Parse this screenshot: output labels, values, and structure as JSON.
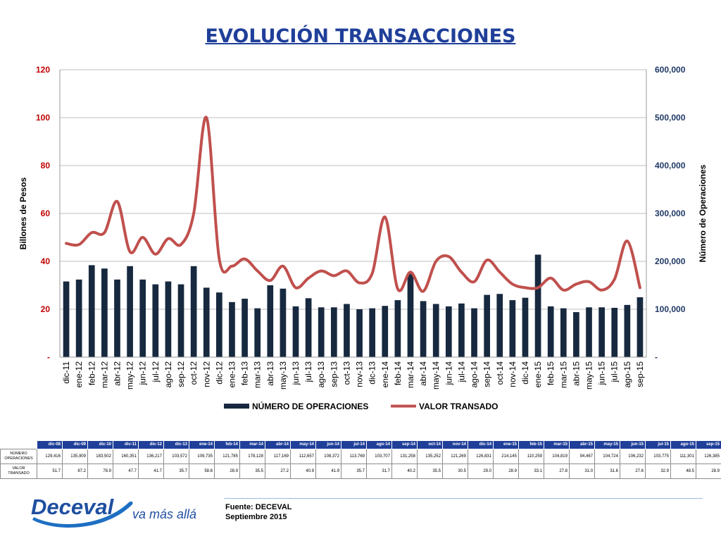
{
  "title": "EVOLUCIÓN TRANSACCIONES",
  "chart_data": {
    "type": "bar",
    "categories": [
      "dic-11",
      "ene-12",
      "feb-12",
      "mar-12",
      "abr-12",
      "may-12",
      "jun-12",
      "jul-12",
      "ago-12",
      "sep-12",
      "oct-12",
      "nov-12",
      "dic-12",
      "ene-13",
      "feb-13",
      "mar-13",
      "abr-13",
      "may-13",
      "jun-13",
      "jul-13",
      "ago-13",
      "sep-13",
      "oct-13",
      "nov-13",
      "dic-13",
      "ene-14",
      "feb-14",
      "mar-14",
      "abr-14",
      "may-14",
      "jun-14",
      "jul-14",
      "ago-14",
      "sep-14",
      "oct-14",
      "nov-14",
      "dic-14",
      "ene-15",
      "feb-15",
      "mar-15",
      "abr-15",
      "may-15",
      "jun-15",
      "jul-15",
      "ago-15",
      "sep-15"
    ],
    "series": [
      {
        "name": "NÚMERO DE OPERACIONES",
        "axis": "right",
        "kind": "bar",
        "color": "#17293f",
        "values": [
          158000,
          162000,
          192000,
          185000,
          162000,
          190000,
          162000,
          152000,
          158000,
          152000,
          190000,
          145000,
          135000,
          115000,
          122000,
          102000,
          150000,
          143000,
          106000,
          123000,
          104000,
          104000,
          111000,
          100000,
          102000,
          107000,
          119000,
          174000,
          117000,
          111000,
          106000,
          112000,
          102000,
          130000,
          132000,
          119000,
          124000,
          214000,
          106000,
          102000,
          94000,
          104000,
          104000,
          103000,
          109000,
          125000
        ]
      },
      {
        "name": "VALOR TRANSADO",
        "axis": "left",
        "kind": "line",
        "color": "#c0504d",
        "values": [
          47.5,
          47.0,
          52.0,
          52.0,
          65.0,
          44.0,
          50.0,
          43.0,
          49.5,
          47.0,
          60.0,
          100.0,
          41.0,
          38.0,
          41.0,
          36.0,
          32.0,
          38.0,
          29.0,
          33.0,
          36.0,
          34.0,
          36.0,
          31.0,
          35.0,
          58.5,
          28.5,
          35.5,
          27.5,
          40.0,
          42.0,
          35.5,
          31.5,
          40.5,
          35.5,
          30.5,
          29.0,
          29.0,
          33.0,
          28.0,
          30.5,
          31.5,
          28.0,
          32.5,
          48.5,
          29.0
        ]
      }
    ],
    "ylabel_left": "Billones de Pesos",
    "ylabel_right": "Número de Operaciones",
    "ylim_left": [
      0,
      120
    ],
    "ylim_right": [
      0,
      600000
    ],
    "yticks_left": [
      "-",
      "20",
      "40",
      "60",
      "80",
      "100",
      "120"
    ],
    "yticks_right": [
      "-",
      "100,000",
      "200,000",
      "300,000",
      "400,000",
      "500,000",
      "600,000"
    ],
    "grid": true,
    "legend": "bottom",
    "legend_items": [
      {
        "label": "NÚMERO DE OPERACIONES",
        "kind": "bar",
        "color": "#17293f"
      },
      {
        "label": "VALOR TRANSADO",
        "kind": "line",
        "color": "#c0504d"
      }
    ]
  },
  "table": {
    "columns": [
      "dic-08",
      "dic-09",
      "dic-10",
      "dic-11",
      "dic-12",
      "dic-13",
      "ene-14",
      "feb-14",
      "mar-14",
      "abr-14",
      "may-14",
      "jun-14",
      "jul-14",
      "ago-14",
      "sep-14",
      "oct-14",
      "nov-14",
      "dic-14",
      "ene-15",
      "feb-15",
      "mar-15",
      "abr-15",
      "may-15",
      "jun-15",
      "jul-15",
      "ago-15",
      "sep-15"
    ],
    "rows": [
      {
        "label_line1": "NÚMERO",
        "label_line2": "OPERACIONES",
        "values": [
          "129,416",
          "135,909",
          "183,502",
          "160,351",
          "136,217",
          "103,572",
          "109,735",
          "121,785",
          "178,128",
          "117,169",
          "112,657",
          "108,372",
          "113,769",
          "103,707",
          "131,258",
          "135,252",
          "121,269",
          "126,831",
          "214,145",
          "110,259",
          "104,819",
          "94,467",
          "104,724",
          "106,232",
          "103,775",
          "111,301",
          "126,385"
        ]
      },
      {
        "label_line1": "VALOR",
        "label_line2": "TRANSADO",
        "values": [
          "51.7",
          "87.2",
          "78.9",
          "47.7",
          "41.7",
          "35.7",
          "58.6",
          "28.9",
          "35.5",
          "27.2",
          "40.9",
          "41.9",
          "35.7",
          "31.7",
          "40.2",
          "35.5",
          "30.5",
          "29.0",
          "28.9",
          "33.1",
          "27.8",
          "31.0",
          "31.6",
          "27.6",
          "32.9",
          "48.5",
          "28.9"
        ]
      }
    ]
  },
  "logo": {
    "brand": "Deceval",
    "tagline": "va más allá"
  },
  "source": {
    "line1": "Fuente: DECEVAL",
    "line2": "Septiembre 2015"
  },
  "colors": {
    "title": "#1f3f99",
    "bars": "#17293f",
    "line": "#c0504d",
    "left_axis": "#c00000",
    "right_axis": "#1f3864",
    "table_header": "#1f3f99"
  }
}
